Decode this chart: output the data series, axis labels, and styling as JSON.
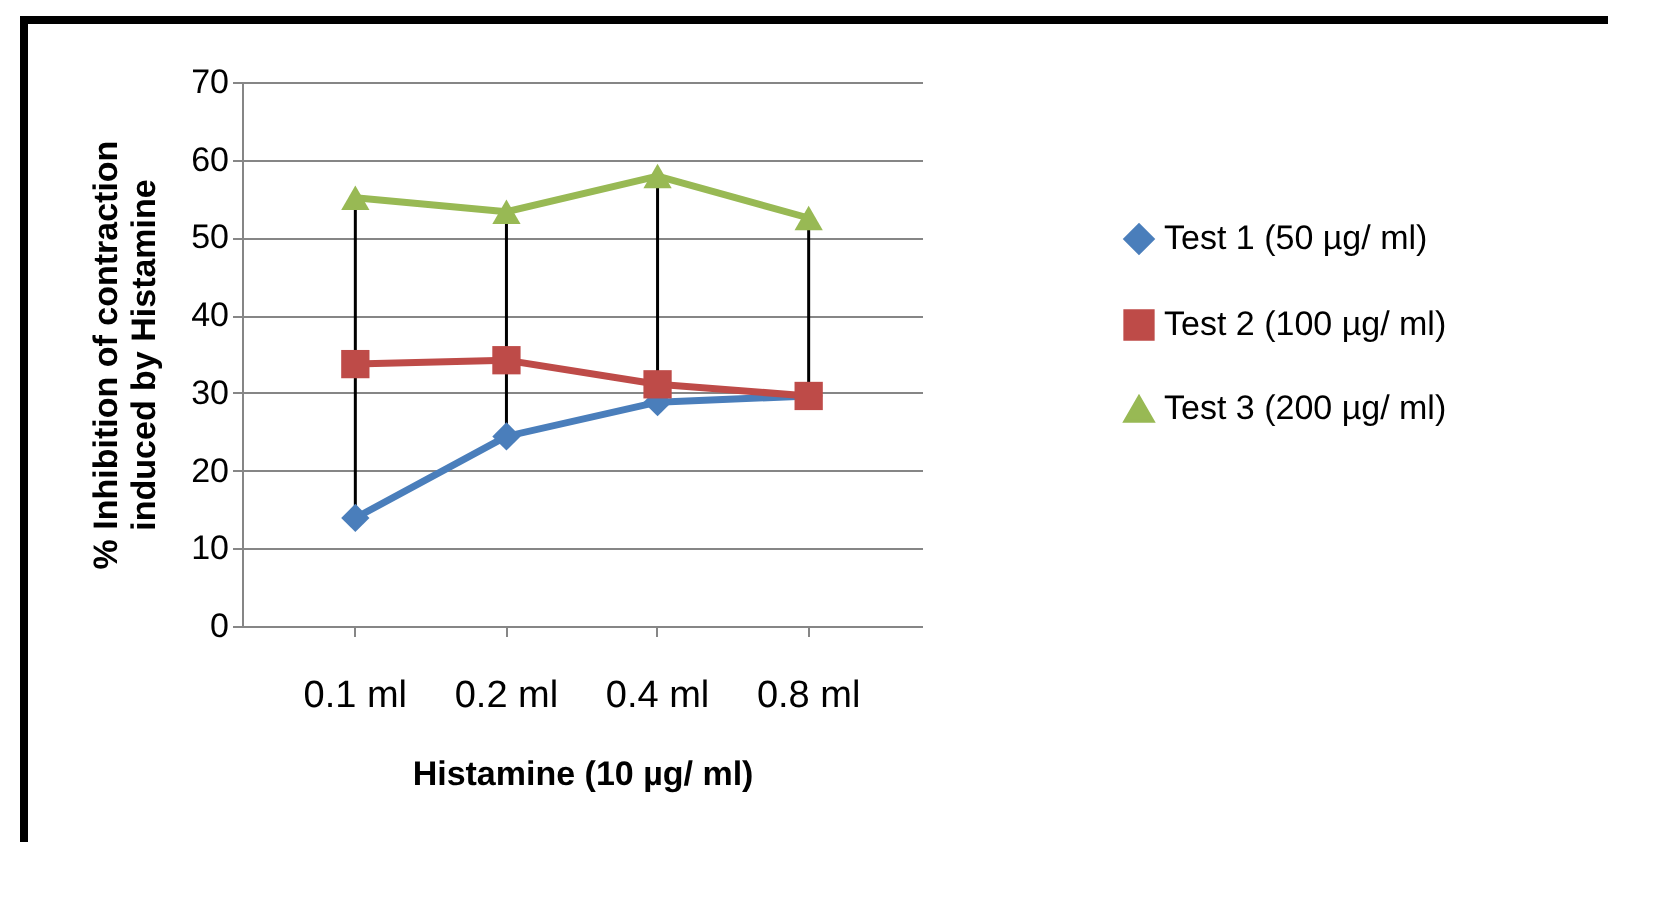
{
  "chart_data": {
    "type": "line",
    "xlabel": "Histamine (10 µg/ ml)",
    "ylabel": "% Inhibition of contraction induced by Histamine",
    "categories": [
      "0.1 ml",
      "0.2 ml",
      "0.4 ml",
      "0.8 ml"
    ],
    "ylim": [
      0,
      70
    ],
    "yticks": [
      0,
      10,
      20,
      30,
      40,
      50,
      60,
      70
    ],
    "grid": "y",
    "legend": "right",
    "series": [
      {
        "name": "Test 1 (50 µg/ ml)",
        "color": "#4a7ebb",
        "marker": "diamond",
        "values": [
          13.9,
          24.4,
          28.8,
          29.6
        ]
      },
      {
        "name": "Test 2 (100 µg/ ml)",
        "color": "#be4b48",
        "marker": "square",
        "values": [
          33.7,
          34.2,
          31.1,
          29.6
        ]
      },
      {
        "name": "Test 3 (200 µg/ ml)",
        "color": "#98b954",
        "marker": "triangle",
        "values": [
          55.1,
          53.3,
          57.9,
          52.5
        ]
      }
    ]
  }
}
